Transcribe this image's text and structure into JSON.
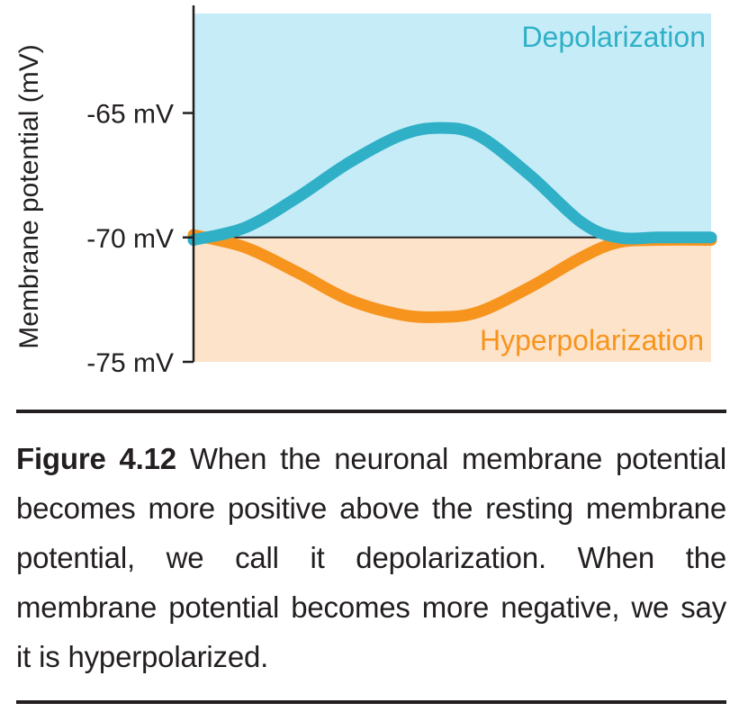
{
  "chart_data": {
    "type": "line",
    "ylabel": "Membrane potential (mV)",
    "xlabel": "",
    "ylim": [
      -75,
      -61
    ],
    "yticks": [
      {
        "value": -65,
        "label": "-65 mV"
      },
      {
        "value": -70,
        "label": "-70 mV"
      },
      {
        "value": -75,
        "label": "-75 mV"
      }
    ],
    "resting_potential": -70,
    "regions": [
      {
        "label": "Depolarization",
        "above": -70,
        "color": "#c6ecf8",
        "text_color": "#2fb0c7"
      },
      {
        "label": "Hyperpolarization",
        "below": -70,
        "color": "#fce3c9",
        "text_color": "#f7941d"
      }
    ],
    "series": [
      {
        "color": "#2fb0c7",
        "x": [
          0,
          0.1,
          0.2,
          0.3,
          0.4,
          0.475,
          0.55,
          0.65,
          0.75,
          0.82,
          0.9,
          1.0
        ],
        "values": [
          -70.1,
          -69.6,
          -68.4,
          -67.0,
          -65.9,
          -65.6,
          -65.9,
          -67.5,
          -69.4,
          -70.0,
          -70.0,
          -70.0
        ]
      },
      {
        "color": "#f7941d",
        "x": [
          0,
          0.1,
          0.2,
          0.3,
          0.4,
          0.475,
          0.55,
          0.65,
          0.75,
          0.82,
          0.9,
          1.0
        ],
        "values": [
          -69.9,
          -70.4,
          -71.4,
          -72.5,
          -73.1,
          -73.2,
          -73.0,
          -72.0,
          -70.8,
          -70.2,
          -70.1,
          -70.1
        ]
      }
    ]
  },
  "caption": {
    "label": "Figure 4.12",
    "text": " When the neuronal membrane potential becomes more positive above the resting membrane potential, we call it depolarization. When the membrane potential becomes more negative, we say it is hyperpolarized."
  }
}
